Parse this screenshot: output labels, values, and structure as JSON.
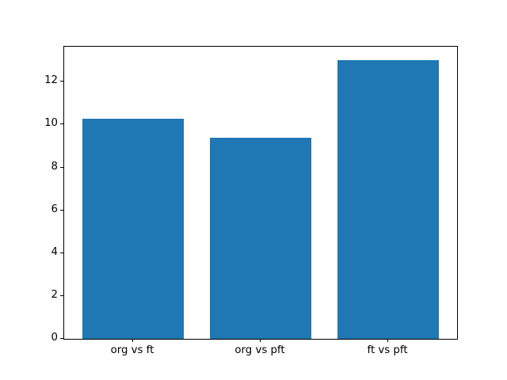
{
  "chart_data": {
    "type": "bar",
    "categories": [
      "org vs ft",
      "org vs pft",
      "ft vs pft"
    ],
    "values": [
      10.27,
      9.38,
      13.0
    ],
    "title": "",
    "xlabel": "",
    "ylabel": "",
    "yticks": [
      0,
      2,
      4,
      6,
      8,
      10,
      12
    ],
    "ylim": [
      0,
      13.65
    ],
    "xlim": [
      -0.54,
      2.54
    ],
    "bar_width": 0.8,
    "bar_color": "#1f77b4",
    "axes_color": "#000000",
    "text_color": "#000000",
    "background": "#ffffff",
    "grid": false,
    "legend": null
  }
}
